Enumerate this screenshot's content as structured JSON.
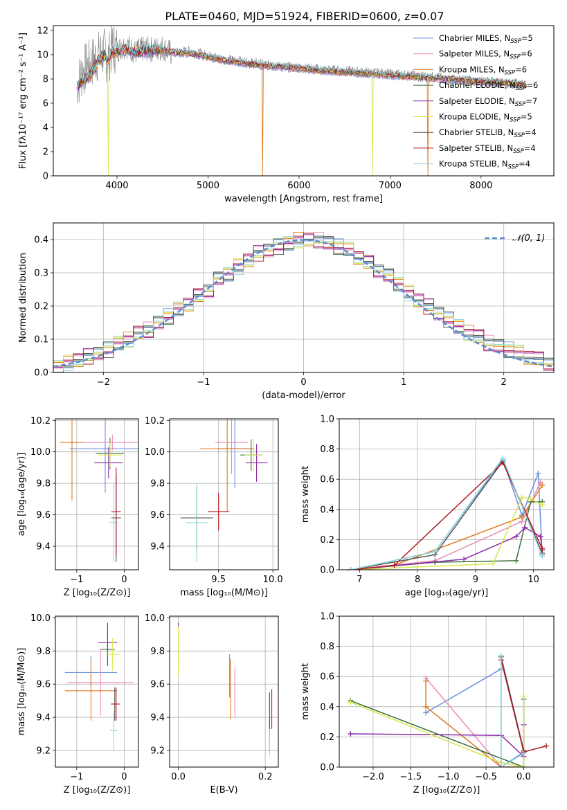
{
  "figure_title": "PLATE=0460, MJD=51924, FIBERID=0600, z=0.07",
  "series_colors": [
    "#6a8fdb",
    "#e88ab8",
    "#e07a20",
    "#3c6e3c",
    "#8b2aa8",
    "#d6e84a",
    "#555555",
    "#b01820",
    "#8fd8dc"
  ],
  "chart_data": [
    {
      "type": "line",
      "id": "spectrum",
      "xlabel": "wavelength [Angstrom, rest frame]",
      "ylabel": "Flux [fλ10⁻¹⁷ erg cm⁻² s⁻¹ A⁻¹]",
      "xlim": [
        3300,
        8800
      ],
      "ylim": [
        0,
        12.4
      ],
      "xticks": [
        4000,
        5000,
        6000,
        7000,
        8000
      ],
      "yticks": [
        0,
        2,
        4,
        6,
        8,
        10,
        12
      ],
      "grid": false,
      "legend_position": "top-right",
      "observed": {
        "x": [
          3560,
          3620,
          3700,
          3780,
          3850,
          3900,
          3950,
          4000,
          4100,
          4200,
          4300,
          4400,
          4500,
          4600,
          4800,
          5000,
          5200,
          5400,
          5600,
          5800,
          6000,
          6200,
          6400,
          6600,
          6800,
          7000,
          7200,
          7400,
          7600,
          7800,
          8000,
          8200,
          8400,
          8500
        ],
        "y": [
          7.5,
          8.6,
          9.2,
          9.8,
          10.2,
          9.6,
          10.6,
          10.4,
          10.8,
          10.2,
          10.5,
          10.4,
          10.6,
          10.1,
          10.3,
          9.9,
          9.6,
          9.4,
          9.2,
          9.0,
          8.9,
          8.8,
          8.7,
          8.6,
          8.5,
          8.4,
          8.3,
          8.2,
          8.0,
          7.9,
          7.8,
          7.7,
          7.6,
          7.5
        ]
      },
      "model": {
        "x": [
          3560,
          3620,
          3700,
          3780,
          3850,
          3900,
          3950,
          4000,
          4100,
          4200,
          4300,
          4400,
          4500,
          4600,
          4800,
          5000,
          5200,
          5400,
          5600,
          5800,
          6000,
          6200,
          6400,
          6600,
          6800,
          7000,
          7200,
          7400,
          7600,
          7800,
          8000,
          8200,
          8400,
          8500
        ],
        "y": [
          7.3,
          7.9,
          8.2,
          9.3,
          10.0,
          9.5,
          10.2,
          10.3,
          10.5,
          10.2,
          10.3,
          10.4,
          10.4,
          10.2,
          10.1,
          9.8,
          9.5,
          9.3,
          9.1,
          9.0,
          8.9,
          8.7,
          8.6,
          8.5,
          8.4,
          8.3,
          8.2,
          8.1,
          8.0,
          7.9,
          7.8,
          7.7,
          7.6,
          7.5
        ]
      },
      "legend": [
        {
          "label": "Chabrier MILES, N",
          "sub": "SSP",
          "suffix": "=5"
        },
        {
          "label": "Salpeter MILES, N",
          "sub": "SSP",
          "suffix": "=6"
        },
        {
          "label": "Kroupa MILES, N",
          "sub": "SSP",
          "suffix": "=6"
        },
        {
          "label": "Chabrier ELODIE, N",
          "sub": "SSP",
          "suffix": "=6"
        },
        {
          "label": "Salpeter ELODIE, N",
          "sub": "SSP",
          "suffix": "=7"
        },
        {
          "label": "Kroupa ELODIE, N",
          "sub": "SSP",
          "suffix": "=5"
        },
        {
          "label": "Chabrier STELIB, N",
          "sub": "SSP",
          "suffix": "=4"
        },
        {
          "label": "Salpeter STELIB, N",
          "sub": "SSP",
          "suffix": "=4"
        },
        {
          "label": "Kroupa STELIB, N",
          "sub": "SSP",
          "suffix": "=4"
        }
      ]
    },
    {
      "type": "histogram",
      "id": "residuals",
      "xlabel": "(data-model)/error",
      "ylabel": "Normed distribution",
      "xlim": [
        -2.5,
        2.5
      ],
      "ylim": [
        0,
        0.45
      ],
      "xticks": [
        -2,
        -1,
        0,
        1,
        2
      ],
      "yticks": [
        0.0,
        0.1,
        0.2,
        0.3,
        0.4
      ],
      "grid": true,
      "legend_position": "top-right",
      "legend": [
        {
          "label": "𝒩(0, 1)"
        }
      ],
      "bin_edges": [
        -2.5,
        -2.4,
        -2.3,
        -2.2,
        -2.1,
        -2.0,
        -1.9,
        -1.8,
        -1.7,
        -1.6,
        -1.5,
        -1.4,
        -1.3,
        -1.2,
        -1.1,
        -1.0,
        -0.9,
        -0.8,
        -0.7,
        -0.6,
        -0.5,
        -0.4,
        -0.3,
        -0.2,
        -0.1,
        0.0,
        0.1,
        0.2,
        0.3,
        0.4,
        0.5,
        0.6,
        0.7,
        0.8,
        0.9,
        1.0,
        1.1,
        1.2,
        1.3,
        1.4,
        1.5,
        1.6,
        1.7,
        1.8,
        1.9,
        2.0,
        2.1,
        2.2,
        2.3,
        2.4,
        2.5
      ],
      "base_values": [
        0.02,
        0.03,
        0.04,
        0.05,
        0.06,
        0.07,
        0.09,
        0.1,
        0.12,
        0.13,
        0.15,
        0.17,
        0.19,
        0.21,
        0.23,
        0.25,
        0.28,
        0.3,
        0.32,
        0.34,
        0.36,
        0.37,
        0.38,
        0.39,
        0.4,
        0.4,
        0.4,
        0.39,
        0.38,
        0.37,
        0.35,
        0.33,
        0.31,
        0.29,
        0.27,
        0.24,
        0.22,
        0.2,
        0.18,
        0.16,
        0.14,
        0.12,
        0.11,
        0.09,
        0.08,
        0.07,
        0.06,
        0.05,
        0.04,
        0.03
      ],
      "normal_curve": {
        "mean": 0,
        "sigma": 1
      }
    },
    {
      "type": "errorbar",
      "id": "age-vs-Z",
      "xlabel": "Z [log₁₀(Z/Z⊙)]",
      "ylabel": "age  [log₁₀(age/yr)]",
      "xlim": [
        -1.45,
        0.3
      ],
      "ylim": [
        9.25,
        10.21
      ],
      "xticks": [
        -1,
        0
      ],
      "yticks": [
        9.4,
        9.6,
        9.8,
        10.0,
        10.2
      ],
      "grid": true,
      "points": [
        {
          "x": -0.4,
          "y": 10.02,
          "xerr": 0.75,
          "yerr": 0.28
        },
        {
          "x": -0.25,
          "y": 10.06,
          "xerr": 0.6,
          "yerr": 0.05
        },
        {
          "x": -1.1,
          "y": 10.06,
          "xerr": 0.25,
          "yerr": 0.37
        },
        {
          "x": -0.3,
          "y": 9.99,
          "xerr": 0.3,
          "yerr": 0.1
        },
        {
          "x": -0.33,
          "y": 9.93,
          "xerr": 0.3,
          "yerr": 0.1
        },
        {
          "x": -0.3,
          "y": 9.98,
          "xerr": 0.25,
          "yerr": 0.08
        },
        {
          "x": -0.17,
          "y": 9.58,
          "xerr": 0.1,
          "yerr": 0.28
        },
        {
          "x": -0.17,
          "y": 9.62,
          "xerr": 0.1,
          "yerr": 0.28
        },
        {
          "x": -0.22,
          "y": 9.55,
          "xerr": 0.1,
          "yerr": 0.25
        }
      ]
    },
    {
      "type": "errorbar",
      "id": "age-vs-mass",
      "xlabel": "mass [log₁₀(M/M⊙)]",
      "ylabel": "",
      "xlim": [
        9.05,
        10.05
      ],
      "ylim": [
        9.25,
        10.21
      ],
      "xticks": [
        9.5,
        10.0
      ],
      "yticks": [
        9.4,
        9.6,
        9.8,
        10.0,
        10.2
      ],
      "grid": true,
      "points": [
        {
          "x": 9.65,
          "y": 10.02,
          "xerr": 0.15,
          "yerr": 0.25
        },
        {
          "x": 9.62,
          "y": 10.06,
          "xerr": 0.15,
          "yerr": 0.2
        },
        {
          "x": 9.58,
          "y": 10.02,
          "xerr": 0.25,
          "yerr": 0.4
        },
        {
          "x": 9.8,
          "y": 9.98,
          "xerr": 0.1,
          "yerr": 0.1
        },
        {
          "x": 9.85,
          "y": 9.93,
          "xerr": 0.1,
          "yerr": 0.12
        },
        {
          "x": 9.82,
          "y": 9.98,
          "xerr": 0.08,
          "yerr": 0.1
        },
        {
          "x": 9.3,
          "y": 9.58,
          "xerr": 0.15,
          "yerr": 0.2
        },
        {
          "x": 9.5,
          "y": 9.62,
          "xerr": 0.1,
          "yerr": 0.12
        },
        {
          "x": 9.3,
          "y": 9.55,
          "xerr": 0.1,
          "yerr": 0.25
        }
      ]
    },
    {
      "type": "line",
      "id": "weight-vs-age",
      "xlabel": "age  [log₁₀(age/yr)]",
      "ylabel": "mass weight",
      "xlim": [
        6.65,
        10.35
      ],
      "ylim": [
        0,
        1.0
      ],
      "xticks": [
        7,
        8,
        9,
        10
      ],
      "yticks": [
        0.0,
        0.2,
        0.4,
        0.6,
        0.8,
        1.0
      ],
      "grid": true,
      "series": [
        {
          "x": [
            6.85,
            8.3,
            9.47,
            9.8,
            10.08,
            10.15
          ],
          "y": [
            0.0,
            0.12,
            0.73,
            0.36,
            0.64,
            0.1
          ]
        },
        {
          "x": [
            6.85,
            8.3,
            9.8,
            10.12
          ],
          "y": [
            0.0,
            0.06,
            0.32,
            0.58
          ]
        },
        {
          "x": [
            6.85,
            7.6,
            9.8,
            10.15
          ],
          "y": [
            0.0,
            0.03,
            0.35,
            0.56
          ]
        },
        {
          "x": [
            6.85,
            8.3,
            9.7,
            9.95,
            10.15
          ],
          "y": [
            0.0,
            0.05,
            0.06,
            0.45,
            0.45
          ]
        },
        {
          "x": [
            6.85,
            8.8,
            9.7,
            9.85,
            10.12,
            10.15
          ],
          "y": [
            0.0,
            0.07,
            0.22,
            0.28,
            0.22,
            0.13
          ]
        },
        {
          "x": [
            6.85,
            9.3,
            9.8,
            9.95,
            10.15
          ],
          "y": [
            0.0,
            0.04,
            0.48,
            0.47,
            0.43
          ]
        },
        {
          "x": [
            6.85,
            8.3,
            9.47,
            10.15
          ],
          "y": [
            0.0,
            0.1,
            0.72,
            0.11
          ]
        },
        {
          "x": [
            6.85,
            7.6,
            9.47,
            10.15
          ],
          "y": [
            0.0,
            0.03,
            0.71,
            0.14
          ]
        },
        {
          "x": [
            6.85,
            8.3,
            9.47,
            10.15
          ],
          "y": [
            0.0,
            0.12,
            0.74,
            0.09
          ]
        }
      ]
    },
    {
      "type": "errorbar",
      "id": "mass-vs-Z",
      "xlabel": "Z [log₁₀(Z/Z⊙)]",
      "ylabel": "mass [log₁₀(M/M⊙)]",
      "xlim": [
        -1.45,
        0.3
      ],
      "ylim": [
        9.1,
        10.01
      ],
      "xticks": [
        -1,
        0
      ],
      "yticks": [
        9.2,
        9.4,
        9.6,
        9.8,
        10.0
      ],
      "grid": true,
      "points": [
        {
          "x": -0.7,
          "y": 9.67,
          "xerr": 0.55,
          "yerr": 0.1
        },
        {
          "x": -0.5,
          "y": 9.61,
          "xerr": 0.7,
          "yerr": 0.2
        },
        {
          "x": -0.7,
          "y": 9.56,
          "xerr": 0.55,
          "yerr": 0.18
        },
        {
          "x": -0.35,
          "y": 9.81,
          "xerr": 0.15,
          "yerr": 0.1
        },
        {
          "x": -0.35,
          "y": 9.85,
          "xerr": 0.2,
          "yerr": 0.12
        },
        {
          "x": -0.25,
          "y": 9.78,
          "xerr": 0.15,
          "yerr": 0.1
        },
        {
          "x": -0.2,
          "y": 9.48,
          "xerr": 0.08,
          "yerr": 0.1
        },
        {
          "x": -0.17,
          "y": 9.48,
          "xerr": 0.08,
          "yerr": 0.1
        },
        {
          "x": -0.22,
          "y": 9.32,
          "xerr": 0.08,
          "yerr": 0.12
        }
      ]
    },
    {
      "type": "errorbar",
      "id": "mass-vs-ebv",
      "xlabel": "E(B-V)",
      "ylabel": "",
      "xlim": [
        -0.02,
        0.23
      ],
      "ylim": [
        9.1,
        10.01
      ],
      "xticks": [
        0.0,
        0.2
      ],
      "yticks": [
        9.2,
        9.4,
        9.6,
        9.8,
        10.0
      ],
      "grid": true,
      "points": [
        {
          "x": 0.118,
          "y": 9.65,
          "xerr": 0,
          "yerr": 0.13
        },
        {
          "x": 0.13,
          "y": 9.55,
          "xerr": 0,
          "yerr": 0.15
        },
        {
          "x": 0.12,
          "y": 9.57,
          "xerr": 0,
          "yerr": 0.18
        },
        {
          "x": 0.21,
          "y": 9.4,
          "xerr": 0,
          "yerr": 0.15
        },
        {
          "x": 0.0,
          "y": 9.85,
          "xerr": 0,
          "yerr": 0.12
        },
        {
          "x": 0.0,
          "y": 9.8,
          "xerr": 0,
          "yerr": 0.15
        },
        {
          "x": 0.21,
          "y": 9.3,
          "xerr": 0,
          "yerr": 0.1
        },
        {
          "x": 0.215,
          "y": 9.45,
          "xerr": 0,
          "yerr": 0.12
        },
        {
          "x": 0.21,
          "y": 9.25,
          "xerr": 0,
          "yerr": 0.08
        }
      ]
    },
    {
      "type": "line",
      "id": "weight-vs-Z",
      "xlabel": "Z [log₁₀(Z/Z⊙)]",
      "ylabel": "mass weight",
      "xlim": [
        -2.45,
        0.4
      ],
      "ylim": [
        0,
        1.0
      ],
      "xticks": [
        -2.0,
        -1.5,
        -1.0,
        -0.5,
        0.0
      ],
      "yticks": [
        0.0,
        0.2,
        0.4,
        0.6,
        0.8,
        1.0
      ],
      "grid": true,
      "series": [
        {
          "x": [
            -1.3,
            -0.3,
            -0.3,
            0.0
          ],
          "y": [
            0.36,
            0.65,
            0.0,
            0.1
          ]
        },
        {
          "x": [
            -1.3,
            -0.3,
            0.0
          ],
          "y": [
            0.59,
            0.0,
            0.0
          ]
        },
        {
          "x": [
            -1.3,
            -1.3,
            -0.3,
            0.0
          ],
          "y": [
            0.57,
            0.4,
            0.0,
            0.0
          ]
        },
        {
          "x": [
            -2.3,
            0.0,
            0.0
          ],
          "y": [
            0.44,
            0.0,
            0.45
          ]
        },
        {
          "x": [
            -2.3,
            -0.3,
            0.0,
            0.0
          ],
          "y": [
            0.22,
            0.21,
            0.07,
            0.28
          ]
        },
        {
          "x": [
            -2.3,
            -0.3,
            0.0,
            0.0
          ],
          "y": [
            0.43,
            0.03,
            0.0,
            0.47
          ]
        },
        {
          "x": [
            -0.3,
            0.0
          ],
          "y": [
            0.73,
            0.11
          ]
        },
        {
          "x": [
            -0.3,
            0.0,
            0.3
          ],
          "y": [
            0.71,
            0.1,
            0.14
          ]
        },
        {
          "x": [
            -0.3,
            -0.3,
            0.0
          ],
          "y": [
            0.74,
            0.0,
            0.09
          ]
        }
      ]
    }
  ]
}
